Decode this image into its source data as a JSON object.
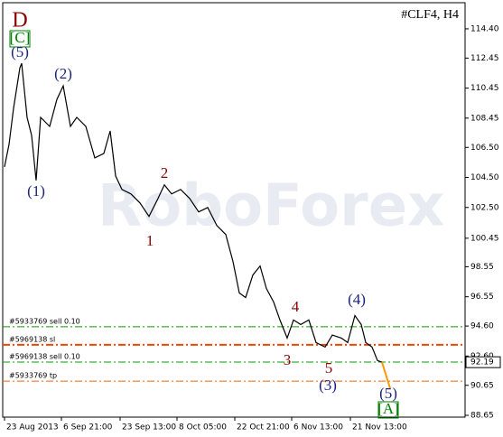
{
  "chart_data": {
    "type": "line",
    "title": "#CLF4, H4",
    "watermark": "RoboForex",
    "xlim": [
      0,
      512
    ],
    "ylim": [
      88.53,
      116.14
    ],
    "yticks": [
      {
        "value": 114.4,
        "label": "114.40"
      },
      {
        "value": 112.45,
        "label": "112.45"
      },
      {
        "value": 110.45,
        "label": "110.45"
      },
      {
        "value": 108.45,
        "label": "108.45"
      },
      {
        "value": 106.5,
        "label": "106.50"
      },
      {
        "value": 104.5,
        "label": "104.50"
      },
      {
        "value": 102.5,
        "label": "102.50"
      },
      {
        "value": 100.45,
        "label": "100.45"
      },
      {
        "value": 98.55,
        "label": "98.55"
      },
      {
        "value": 96.55,
        "label": "96.55"
      },
      {
        "value": 94.6,
        "label": "94.60"
      },
      {
        "value": 92.6,
        "label": "92.60"
      },
      {
        "value": 90.65,
        "label": "90.65"
      },
      {
        "value": 88.65,
        "label": "88.65"
      }
    ],
    "xticks": [
      {
        "value": 2,
        "label": "23 Aug 2013"
      },
      {
        "value": 65,
        "label": "6 Sep 21:00"
      },
      {
        "value": 130,
        "label": "23 Sep 13:00"
      },
      {
        "value": 193,
        "label": "8 Oct 05:00"
      },
      {
        "value": 257,
        "label": "22 Oct 21:00"
      },
      {
        "value": 320,
        "label": "6 Nov 13:00"
      },
      {
        "value": 385,
        "label": "21 Nov 13:00"
      }
    ],
    "series": [
      {
        "name": "CLF4",
        "color": "#000000",
        "x": [
          2,
          7,
          12,
          19,
          21,
          27,
          32,
          37,
          42,
          52,
          60,
          67,
          75,
          82,
          92,
          102,
          112,
          119,
          125,
          132,
          142,
          152,
          162,
          172,
          179,
          187,
          197,
          207,
          217,
          227,
          237,
          247,
          255,
          262,
          269,
          277,
          285,
          292,
          300,
          307,
          315,
          322,
          330,
          339,
          347,
          357,
          365,
          375,
          382,
          390,
          397,
          402,
          409,
          415,
          420
        ],
        "values": [
          105.2,
          106.7,
          109.1,
          111.8,
          112.1,
          108.5,
          107.3,
          104.3,
          108.5,
          107.9,
          109.7,
          110.6,
          107.9,
          108.5,
          107.9,
          105.8,
          106.1,
          107.6,
          104.6,
          103.7,
          103.4,
          102.8,
          101.9,
          103.1,
          104.0,
          103.4,
          103.7,
          103.1,
          102.2,
          102.5,
          101.3,
          100.7,
          98.9,
          96.8,
          96.5,
          98.0,
          98.6,
          97.1,
          96.2,
          95.0,
          93.8,
          95.0,
          94.7,
          95.0,
          93.5,
          93.2,
          94.0,
          93.8,
          93.5,
          95.3,
          94.7,
          93.5,
          93.2,
          92.3,
          92.19
        ]
      },
      {
        "name": "projection",
        "color": "#ff9900",
        "x": [
          420,
          429
        ],
        "values": [
          92.19,
          90.45
        ]
      }
    ],
    "last_price": 92.19,
    "levels": [
      {
        "label": "#5933769 sell 0.10",
        "value": 94.55,
        "color": "#00a000",
        "width": 1
      },
      {
        "label": "#5969138 sl",
        "value": 93.35,
        "color": "#ff4000",
        "width": 2
      },
      {
        "label": "#5969138 sell 0.10",
        "value": 92.2,
        "color": "#00a000",
        "width": 1
      },
      {
        "label": "#5933769 tp",
        "value": 90.93,
        "color": "#ff6000",
        "width": 1
      }
    ],
    "annotations": [
      {
        "text": "D",
        "color": "#8b0000"
      },
      {
        "text": "[C]",
        "color": "#008000"
      },
      {
        "text": "(5)",
        "color": "#1a237e"
      },
      {
        "text": "(1)",
        "color": "#1a237e"
      },
      {
        "text": "(2)",
        "color": "#1a237e"
      },
      {
        "text": "1",
        "color": "#8b0000"
      },
      {
        "text": "2",
        "color": "#8b0000"
      },
      {
        "text": "3",
        "color": "#8b0000"
      },
      {
        "text": "4",
        "color": "#8b0000"
      },
      {
        "text": "5",
        "color": "#8b0000"
      },
      {
        "text": "(3)",
        "color": "#1a237e"
      },
      {
        "text": "(4)",
        "color": "#1a237e"
      },
      {
        "text": "(5)",
        "color": "#1a237e"
      },
      {
        "text": "[A]",
        "color": "#008000"
      }
    ]
  }
}
